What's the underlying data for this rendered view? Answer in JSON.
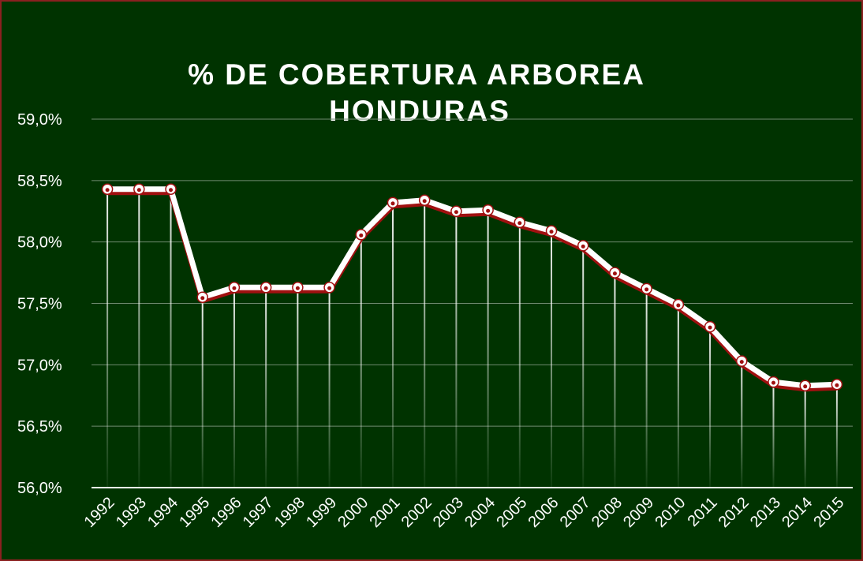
{
  "chart_data": {
    "type": "line",
    "title": [
      "% DE COBERTURA ARBOREA",
      "HONDURAS"
    ],
    "categories": [
      "1992",
      "1993",
      "1994",
      "1995",
      "1996",
      "1997",
      "1998",
      "1999",
      "2000",
      "2001",
      "2002",
      "2003",
      "2004",
      "2005",
      "2006",
      "2007",
      "2008",
      "2009",
      "2010",
      "2011",
      "2012",
      "2013",
      "2014",
      "2015"
    ],
    "values": [
      58.43,
      58.43,
      58.43,
      57.55,
      57.63,
      57.63,
      57.63,
      57.63,
      58.06,
      58.32,
      58.34,
      58.25,
      58.26,
      58.16,
      58.09,
      57.97,
      57.75,
      57.62,
      57.49,
      57.31,
      57.03,
      56.86,
      56.83,
      56.84
    ],
    "color": "#ffffff",
    "ylim": [
      56.0,
      59.0
    ],
    "yticks": [
      {
        "value": 56.0,
        "label": "56,0%"
      },
      {
        "value": 56.5,
        "label": "56,5%"
      },
      {
        "value": 57.0,
        "label": "57,0%"
      },
      {
        "value": 57.5,
        "label": "57,5%"
      },
      {
        "value": 58.0,
        "label": "58,0%"
      },
      {
        "value": 58.5,
        "label": "58,5%"
      },
      {
        "value": 59.0,
        "label": "59,0%"
      }
    ],
    "grid": true
  }
}
